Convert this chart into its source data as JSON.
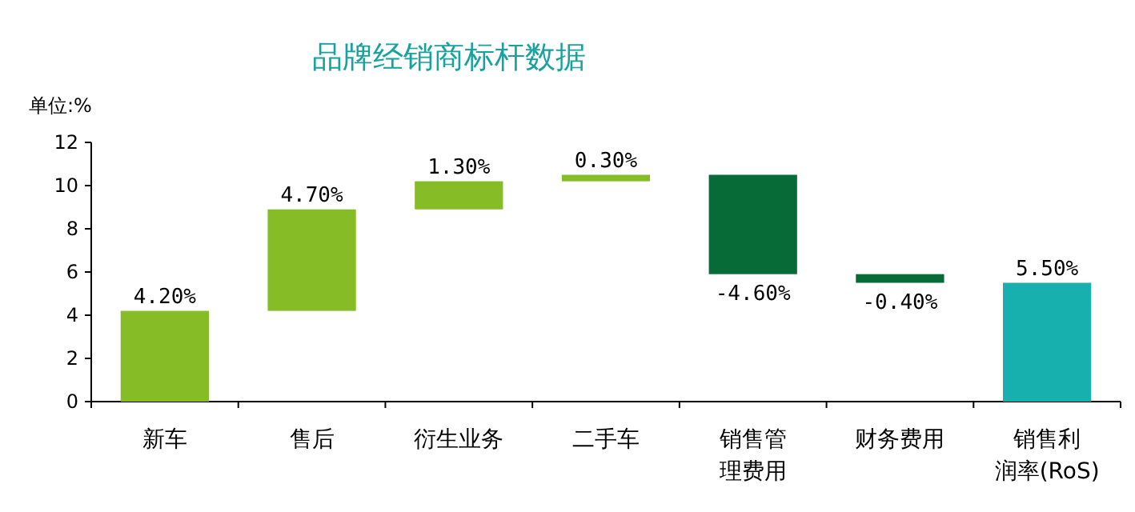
{
  "chart_data": {
    "type": "bar",
    "title": "品牌经销商标杆数据",
    "ylabel": "单位:%",
    "categories": [
      "新车",
      "售后",
      "衍生业务",
      "二手车",
      "销售管理费用",
      "财务费用",
      "销售利润率(RoS)"
    ],
    "values": [
      4.2,
      4.7,
      1.3,
      0.3,
      -4.6,
      -0.4,
      5.5
    ],
    "base": [
      0,
      4.2,
      8.9,
      10.2,
      10.5,
      5.9,
      0
    ],
    "colors": [
      "#86bc25",
      "#86bc25",
      "#86bc25",
      "#86bc25",
      "#076b38",
      "#076b38",
      "#17b0ae"
    ],
    "value_labels": [
      "4.20%",
      "4.70%",
      "1.30%",
      "0.30%",
      "-4.60%",
      "-0.40%",
      "5.50%"
    ],
    "ylim": [
      0,
      12
    ],
    "yticks": [
      0,
      2,
      4,
      6,
      8,
      10,
      12
    ],
    "grid": false
  }
}
